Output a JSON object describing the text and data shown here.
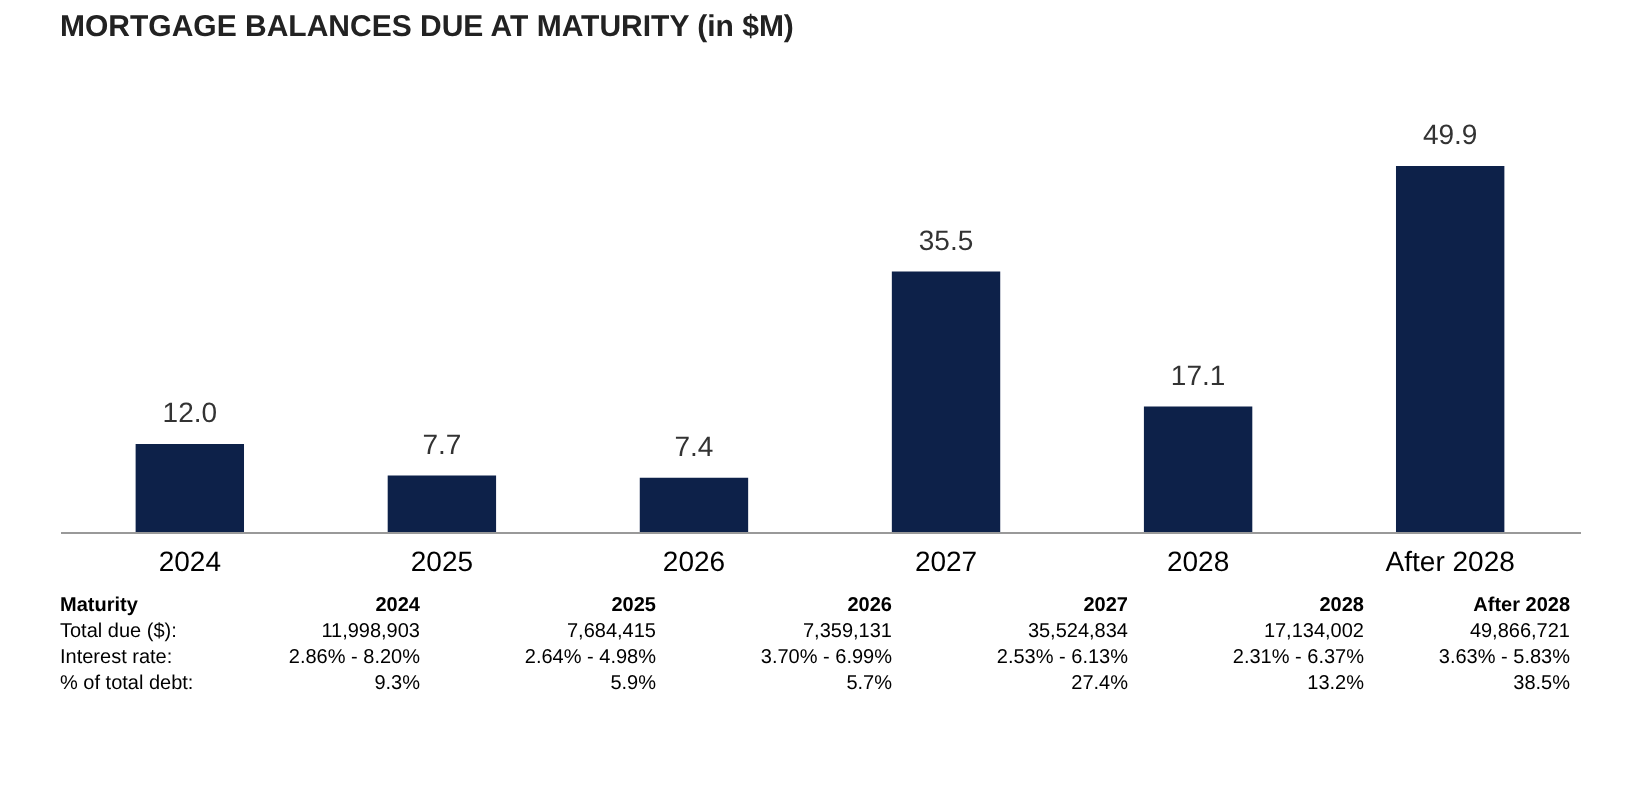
{
  "chart_data": {
    "type": "bar",
    "title": "MORTGAGE BALANCES DUE AT MATURITY (in $M)",
    "categories": [
      "2024",
      "2025",
      "2026",
      "2027",
      "2028",
      "After 2028"
    ],
    "values": [
      12.0,
      7.7,
      7.4,
      35.5,
      17.1,
      49.9
    ],
    "color": "#0d2149",
    "value_labels": [
      "12.0",
      "7.7",
      "7.4",
      "35.5",
      "17.1",
      "49.9"
    ],
    "grid": false,
    "annotations": [
      "Maturity",
      "2024",
      "2025",
      "2026",
      "2027",
      "2028",
      "After 2028",
      "Total due ($):",
      "11,998,903",
      "7,684,415",
      "7,359,131",
      "35,524,834",
      "17,134,002",
      "49,866,721",
      "Interest rate:",
      "2.86% - 8.20%",
      "2.64% - 4.98%",
      "3.70% - 6.99%",
      "2.53% - 6.13%",
      "2.31% - 6.37%",
      "3.63% - 5.83%",
      "% of total debt:",
      "9.3%",
      "5.9%",
      "5.7%",
      "27.4%",
      "13.2%",
      "38.5%"
    ]
  }
}
